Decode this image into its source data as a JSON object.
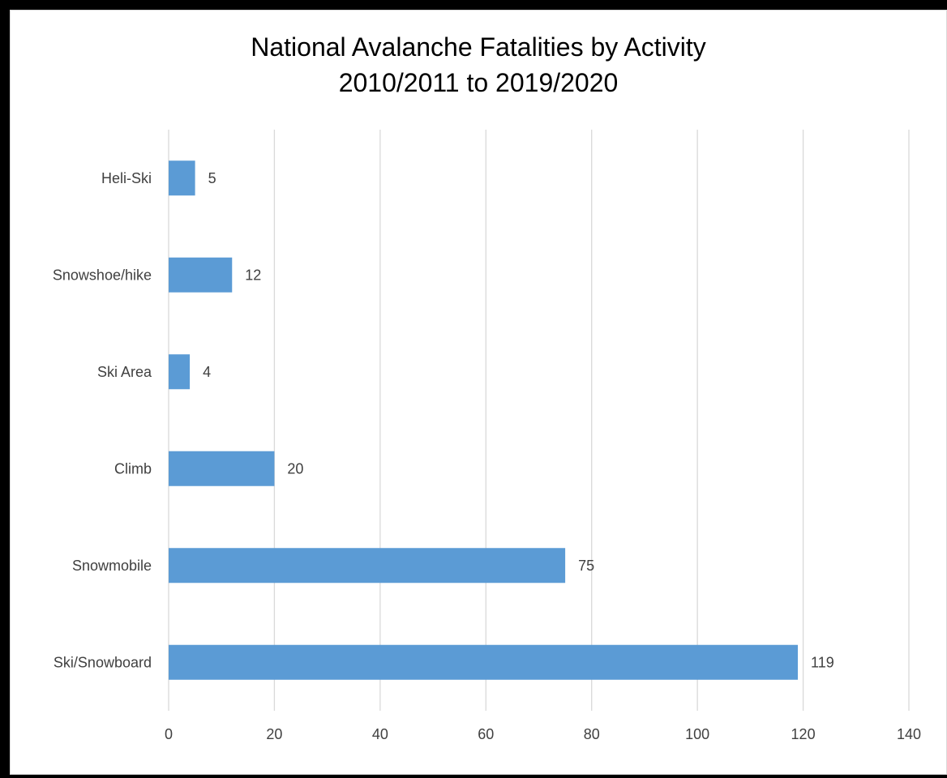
{
  "chart_data": {
    "type": "bar",
    "orientation": "horizontal",
    "title": "National Avalanche Fatalities by Activity",
    "subtitle": "2010/2011 to 2019/2020",
    "categories": [
      "Heli-Ski",
      "Snowshoe/hike",
      "Ski Area",
      "Climb",
      "Snowmobile",
      "Ski/Snowboard"
    ],
    "values": [
      5,
      12,
      4,
      20,
      75,
      119
    ],
    "xlim": [
      0,
      140
    ],
    "xticks": [
      0,
      20,
      40,
      60,
      80,
      100,
      120,
      140
    ],
    "grid": true,
    "data_labels": true,
    "legend": "none",
    "bar_color": "#5b9bd5",
    "grid_color": "#d9d9d9"
  }
}
